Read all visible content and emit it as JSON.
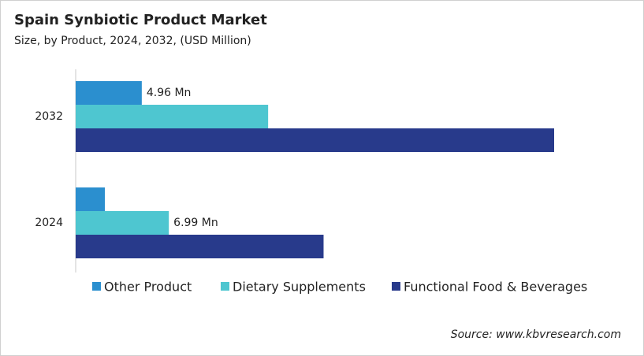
{
  "chart_data": {
    "type": "hbar",
    "title": "Spain Synbiotic Product Market",
    "subtitle": "Size, by Product, 2024, 2032, (USD Million)",
    "categories": [
      "2032",
      "2024"
    ],
    "series": [
      {
        "name": "Other Product",
        "color": "#2b8fcf",
        "values": [
          4.96,
          2.19
        ],
        "value_labels": [
          "4.96 Mn",
          null
        ]
      },
      {
        "name": "Dietary Supplements",
        "color": "#4ec6d0",
        "values": [
          14.44,
          6.99
        ],
        "value_labels": [
          null,
          "6.99 Mn"
        ]
      },
      {
        "name": "Functional Food & Beverages",
        "color": "#283a8b",
        "values": [
          35.9,
          18.6
        ]
      }
    ],
    "source": "Source: www.kbvresearch.com"
  }
}
